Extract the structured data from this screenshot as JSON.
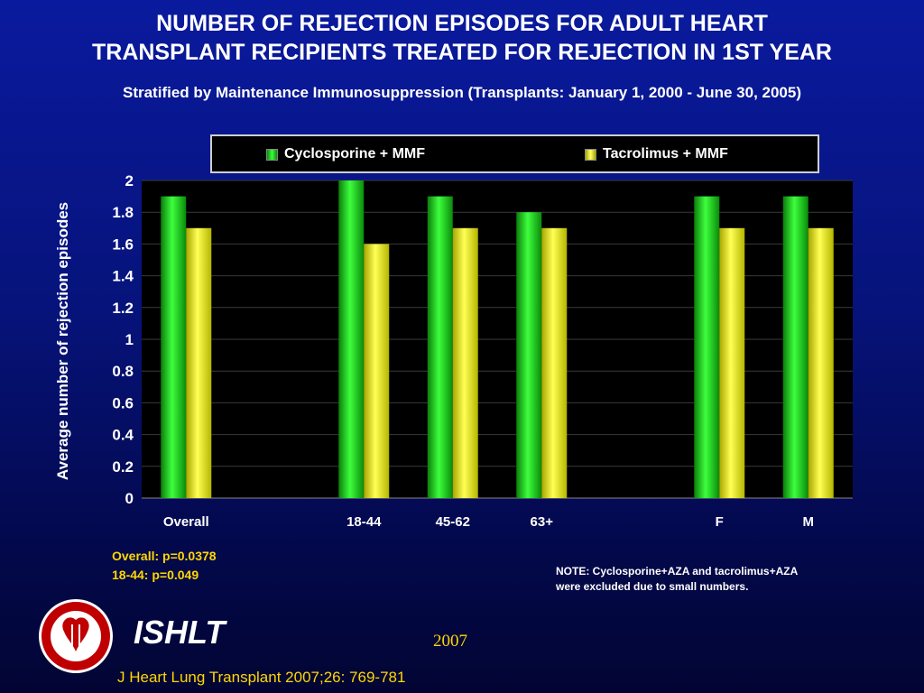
{
  "header": {
    "title_line1": "NUMBER OF REJECTION EPISODES FOR ADULT HEART",
    "title_line2": "TRANSPLANT RECIPIENTS TREATED FOR REJECTION IN 1ST YEAR",
    "subtitle": "Stratified by Maintenance Immunosuppression  (Transplants: January 1, 2000 - June 30, 2005)"
  },
  "chart_data": {
    "type": "bar",
    "categories": [
      "Overall",
      "",
      "18-44",
      "45-62",
      "63+",
      "",
      "F",
      "M"
    ],
    "series": [
      {
        "name": "Cyclosporine + MMF",
        "color": "#22cc22",
        "values": [
          1.9,
          null,
          2.0,
          1.9,
          1.8,
          null,
          1.9,
          1.9
        ]
      },
      {
        "name": "Tacrolimus + MMF",
        "color": "#ffff00",
        "values": [
          1.7,
          null,
          1.6,
          1.7,
          1.7,
          null,
          1.7,
          1.7
        ]
      }
    ],
    "ylabel": "Average number of rejection episodes",
    "ylim": [
      0,
      2
    ],
    "yticks": [
      "0",
      "0.2",
      "0.4",
      "0.6",
      "0.8",
      "1",
      "1.2",
      "1.4",
      "1.6",
      "1.8",
      "2"
    ],
    "grid": true,
    "legend": "top"
  },
  "annotations": {
    "stats_line1": "Overall: p=0.0378",
    "stats_line2": "18-44: p=0.049",
    "note_line1": "NOTE: Cyclosporine+AZA and tacrolimus+AZA",
    "note_line2": "were excluded due to small numbers."
  },
  "footer": {
    "brand": "ISHLT",
    "year": "2007",
    "citation": "J Heart Lung Transplant 2007;26: 769-781",
    "logo_text": "INTERNATIONAL SOCIETY FOR HEART & LUNG TRANSPLANTATION"
  },
  "colors": {
    "background": "#06137a",
    "accent_yellow": "#ffd700",
    "series_green": "#22cc22",
    "series_yellow": "#ffff00"
  }
}
